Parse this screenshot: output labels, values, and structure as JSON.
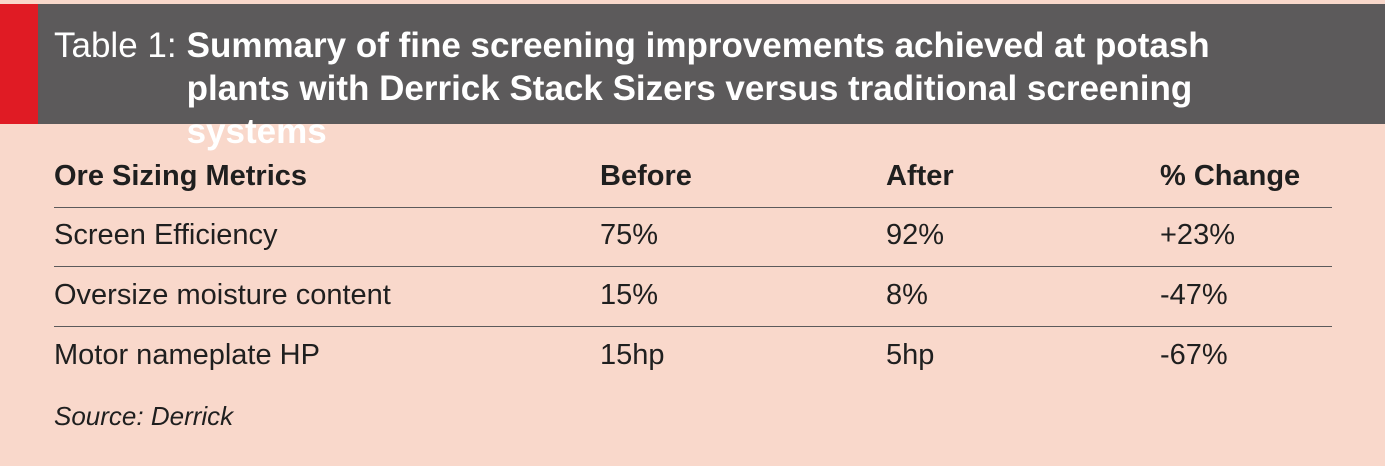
{
  "table": {
    "title_prefix": "Table 1:",
    "title": "Summary of fine screening improvements achieved at potash plants with Derrick Stack Sizers versus traditional screening systems",
    "columns": [
      "Ore Sizing Metrics",
      "Before",
      "After",
      "% Change"
    ],
    "rows": [
      [
        "Screen Efficiency",
        "75%",
        "92%",
        "+23%"
      ],
      [
        "Oversize moisture content",
        "15%",
        "8%",
        "-47%"
      ],
      [
        "Motor nameplate HP",
        "15hp",
        "5hp",
        "-67%"
      ]
    ],
    "source": "Source: Derrick"
  },
  "colors": {
    "header_bg": "#5c5a5b",
    "accent": "#e01b24",
    "panel_bg": "#f9d8cb"
  }
}
